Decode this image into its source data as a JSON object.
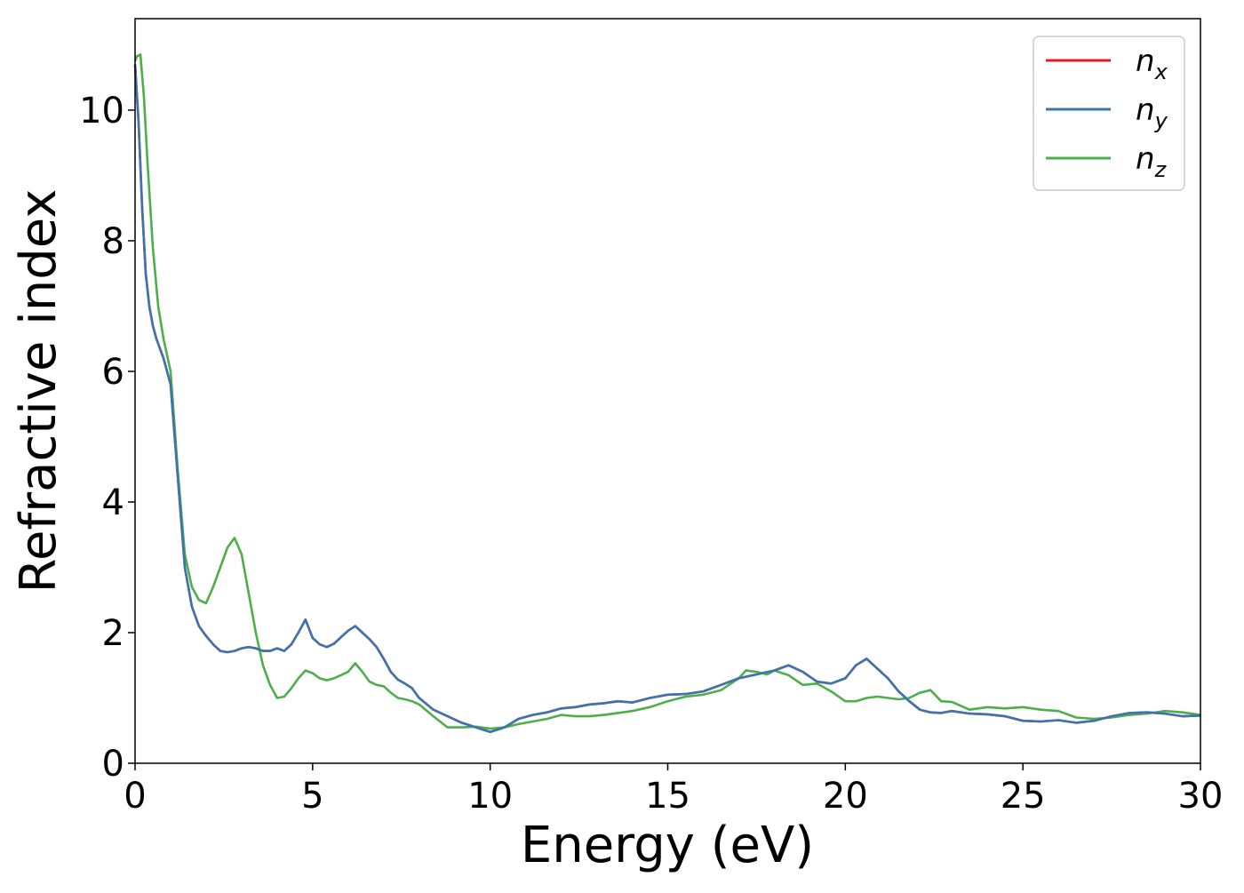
{
  "colors": {
    "nx": "#e41a1c",
    "ny": "#3b75af",
    "nz": "#4daf4a",
    "axis": "#000000",
    "background": "#ffffff"
  },
  "chart_data": {
    "type": "line",
    "xlabel": "Energy (eV)",
    "ylabel": "Refractive index",
    "xlim": [
      0,
      30
    ],
    "ylim": [
      0,
      11.4
    ],
    "x_ticks": [
      0,
      5,
      10,
      15,
      20,
      25,
      30
    ],
    "x_tick_labels": [
      "0",
      "5",
      "10",
      "15",
      "20",
      "25",
      "30"
    ],
    "y_ticks": [
      0,
      2,
      4,
      6,
      8,
      10
    ],
    "y_tick_labels": [
      "0",
      "2",
      "4",
      "6",
      "8",
      "10"
    ],
    "grid": false,
    "legend_position": "top-right",
    "series": [
      {
        "key": "nx",
        "name": "nx",
        "label_base": "n",
        "label_sub": "x",
        "x": [
          0,
          0.1,
          0.2,
          0.3,
          0.4,
          0.5,
          0.6,
          0.8,
          1.0,
          1.2,
          1.4,
          1.6,
          1.8,
          2.0,
          2.2,
          2.4,
          2.6,
          2.8,
          3.0,
          3.2,
          3.4,
          3.6,
          3.8,
          4.0,
          4.2,
          4.4,
          4.6,
          4.8,
          5.0,
          5.2,
          5.4,
          5.6,
          5.8,
          6.0,
          6.2,
          6.4,
          6.6,
          6.8,
          7.0,
          7.2,
          7.4,
          7.6,
          7.8,
          8.0,
          8.4,
          8.8,
          9.2,
          9.6,
          10.0,
          10.4,
          10.8,
          11.2,
          11.6,
          12.0,
          12.4,
          12.8,
          13.2,
          13.6,
          14.0,
          14.5,
          15.0,
          15.5,
          16.0,
          16.5,
          17.0,
          17.5,
          18.0,
          18.4,
          18.8,
          19.2,
          19.6,
          20.0,
          20.3,
          20.6,
          20.9,
          21.2,
          21.5,
          21.8,
          22.1,
          22.4,
          22.7,
          23.0,
          23.5,
          24.0,
          24.5,
          25.0,
          25.5,
          26.0,
          26.5,
          27.0,
          27.5,
          28.0,
          28.5,
          29.0,
          29.5,
          30.0
        ],
        "y": [
          10.7,
          9.8,
          8.5,
          7.5,
          7.0,
          6.7,
          6.5,
          6.2,
          5.8,
          4.4,
          3.0,
          2.4,
          2.1,
          1.95,
          1.82,
          1.72,
          1.7,
          1.72,
          1.76,
          1.78,
          1.76,
          1.72,
          1.72,
          1.76,
          1.72,
          1.82,
          2.0,
          2.2,
          1.92,
          1.82,
          1.78,
          1.83,
          1.93,
          2.03,
          2.1,
          2.0,
          1.9,
          1.78,
          1.6,
          1.4,
          1.28,
          1.22,
          1.15,
          1.0,
          0.82,
          0.72,
          0.62,
          0.55,
          0.48,
          0.55,
          0.68,
          0.74,
          0.78,
          0.84,
          0.86,
          0.9,
          0.92,
          0.95,
          0.93,
          1.0,
          1.05,
          1.06,
          1.1,
          1.2,
          1.3,
          1.36,
          1.42,
          1.5,
          1.4,
          1.25,
          1.22,
          1.3,
          1.5,
          1.6,
          1.45,
          1.3,
          1.1,
          0.95,
          0.82,
          0.78,
          0.77,
          0.8,
          0.76,
          0.75,
          0.72,
          0.65,
          0.64,
          0.66,
          0.62,
          0.65,
          0.72,
          0.77,
          0.78,
          0.76,
          0.72,
          0.73
        ]
      },
      {
        "key": "ny",
        "name": "ny",
        "label_base": "n",
        "label_sub": "y",
        "x": [
          0,
          0.1,
          0.2,
          0.3,
          0.4,
          0.5,
          0.6,
          0.8,
          1.0,
          1.2,
          1.4,
          1.6,
          1.8,
          2.0,
          2.2,
          2.4,
          2.6,
          2.8,
          3.0,
          3.2,
          3.4,
          3.6,
          3.8,
          4.0,
          4.2,
          4.4,
          4.6,
          4.8,
          5.0,
          5.2,
          5.4,
          5.6,
          5.8,
          6.0,
          6.2,
          6.4,
          6.6,
          6.8,
          7.0,
          7.2,
          7.4,
          7.6,
          7.8,
          8.0,
          8.4,
          8.8,
          9.2,
          9.6,
          10.0,
          10.4,
          10.8,
          11.2,
          11.6,
          12.0,
          12.4,
          12.8,
          13.2,
          13.6,
          14.0,
          14.5,
          15.0,
          15.5,
          16.0,
          16.5,
          17.0,
          17.5,
          18.0,
          18.4,
          18.8,
          19.2,
          19.6,
          20.0,
          20.3,
          20.6,
          20.9,
          21.2,
          21.5,
          21.8,
          22.1,
          22.4,
          22.7,
          23.0,
          23.5,
          24.0,
          24.5,
          25.0,
          25.5,
          26.0,
          26.5,
          27.0,
          27.5,
          28.0,
          28.5,
          29.0,
          29.5,
          30.0
        ],
        "y": [
          10.7,
          9.8,
          8.5,
          7.5,
          7.0,
          6.7,
          6.5,
          6.2,
          5.8,
          4.4,
          3.0,
          2.4,
          2.1,
          1.95,
          1.82,
          1.72,
          1.7,
          1.72,
          1.76,
          1.78,
          1.76,
          1.72,
          1.72,
          1.76,
          1.72,
          1.82,
          2.0,
          2.2,
          1.92,
          1.82,
          1.78,
          1.83,
          1.93,
          2.03,
          2.1,
          2.0,
          1.9,
          1.78,
          1.6,
          1.4,
          1.28,
          1.22,
          1.15,
          1.0,
          0.82,
          0.72,
          0.62,
          0.55,
          0.48,
          0.55,
          0.68,
          0.74,
          0.78,
          0.84,
          0.86,
          0.9,
          0.92,
          0.95,
          0.93,
          1.0,
          1.05,
          1.06,
          1.1,
          1.2,
          1.3,
          1.36,
          1.42,
          1.5,
          1.4,
          1.25,
          1.22,
          1.3,
          1.5,
          1.6,
          1.45,
          1.3,
          1.1,
          0.95,
          0.82,
          0.78,
          0.77,
          0.8,
          0.76,
          0.75,
          0.72,
          0.65,
          0.64,
          0.66,
          0.62,
          0.65,
          0.72,
          0.77,
          0.78,
          0.76,
          0.72,
          0.73
        ]
      },
      {
        "key": "nz",
        "name": "nz",
        "label_base": "n",
        "label_sub": "z",
        "x": [
          0,
          0.05,
          0.15,
          0.25,
          0.35,
          0.5,
          0.65,
          0.8,
          1.0,
          1.2,
          1.4,
          1.6,
          1.8,
          2.0,
          2.2,
          2.4,
          2.6,
          2.8,
          3.0,
          3.2,
          3.4,
          3.6,
          3.8,
          4.0,
          4.2,
          4.4,
          4.6,
          4.8,
          5.0,
          5.2,
          5.4,
          5.6,
          5.8,
          6.0,
          6.2,
          6.4,
          6.6,
          6.8,
          7.0,
          7.2,
          7.4,
          7.6,
          7.8,
          8.0,
          8.4,
          8.8,
          9.2,
          9.6,
          10.0,
          10.4,
          10.8,
          11.2,
          11.6,
          12.0,
          12.4,
          12.8,
          13.2,
          13.6,
          14.0,
          14.5,
          15.0,
          15.5,
          16.0,
          16.5,
          17.0,
          17.2,
          17.5,
          17.8,
          18.0,
          18.4,
          18.8,
          19.2,
          19.6,
          20.0,
          20.3,
          20.6,
          20.9,
          21.2,
          21.5,
          21.8,
          22.1,
          22.4,
          22.7,
          23.0,
          23.5,
          24.0,
          24.5,
          25.0,
          25.5,
          26.0,
          26.5,
          27.0,
          27.5,
          28.0,
          28.5,
          29.0,
          29.5,
          30.0
        ],
        "y": [
          10.75,
          10.82,
          10.85,
          10.2,
          9.2,
          7.9,
          7.0,
          6.5,
          6.0,
          4.5,
          3.2,
          2.7,
          2.5,
          2.45,
          2.7,
          3.0,
          3.3,
          3.45,
          3.2,
          2.6,
          2.0,
          1.5,
          1.2,
          1.0,
          1.02,
          1.15,
          1.3,
          1.42,
          1.38,
          1.3,
          1.27,
          1.3,
          1.35,
          1.4,
          1.53,
          1.4,
          1.25,
          1.2,
          1.18,
          1.08,
          1.0,
          0.98,
          0.95,
          0.9,
          0.72,
          0.55,
          0.55,
          0.56,
          0.53,
          0.55,
          0.6,
          0.64,
          0.68,
          0.74,
          0.72,
          0.72,
          0.74,
          0.77,
          0.8,
          0.86,
          0.95,
          1.02,
          1.05,
          1.12,
          1.3,
          1.42,
          1.4,
          1.36,
          1.42,
          1.35,
          1.2,
          1.22,
          1.1,
          0.95,
          0.95,
          1.0,
          1.02,
          1.0,
          0.98,
          1.0,
          1.08,
          1.12,
          0.95,
          0.94,
          0.82,
          0.86,
          0.84,
          0.86,
          0.82,
          0.8,
          0.7,
          0.68,
          0.7,
          0.74,
          0.76,
          0.8,
          0.78,
          0.74
        ]
      }
    ]
  }
}
